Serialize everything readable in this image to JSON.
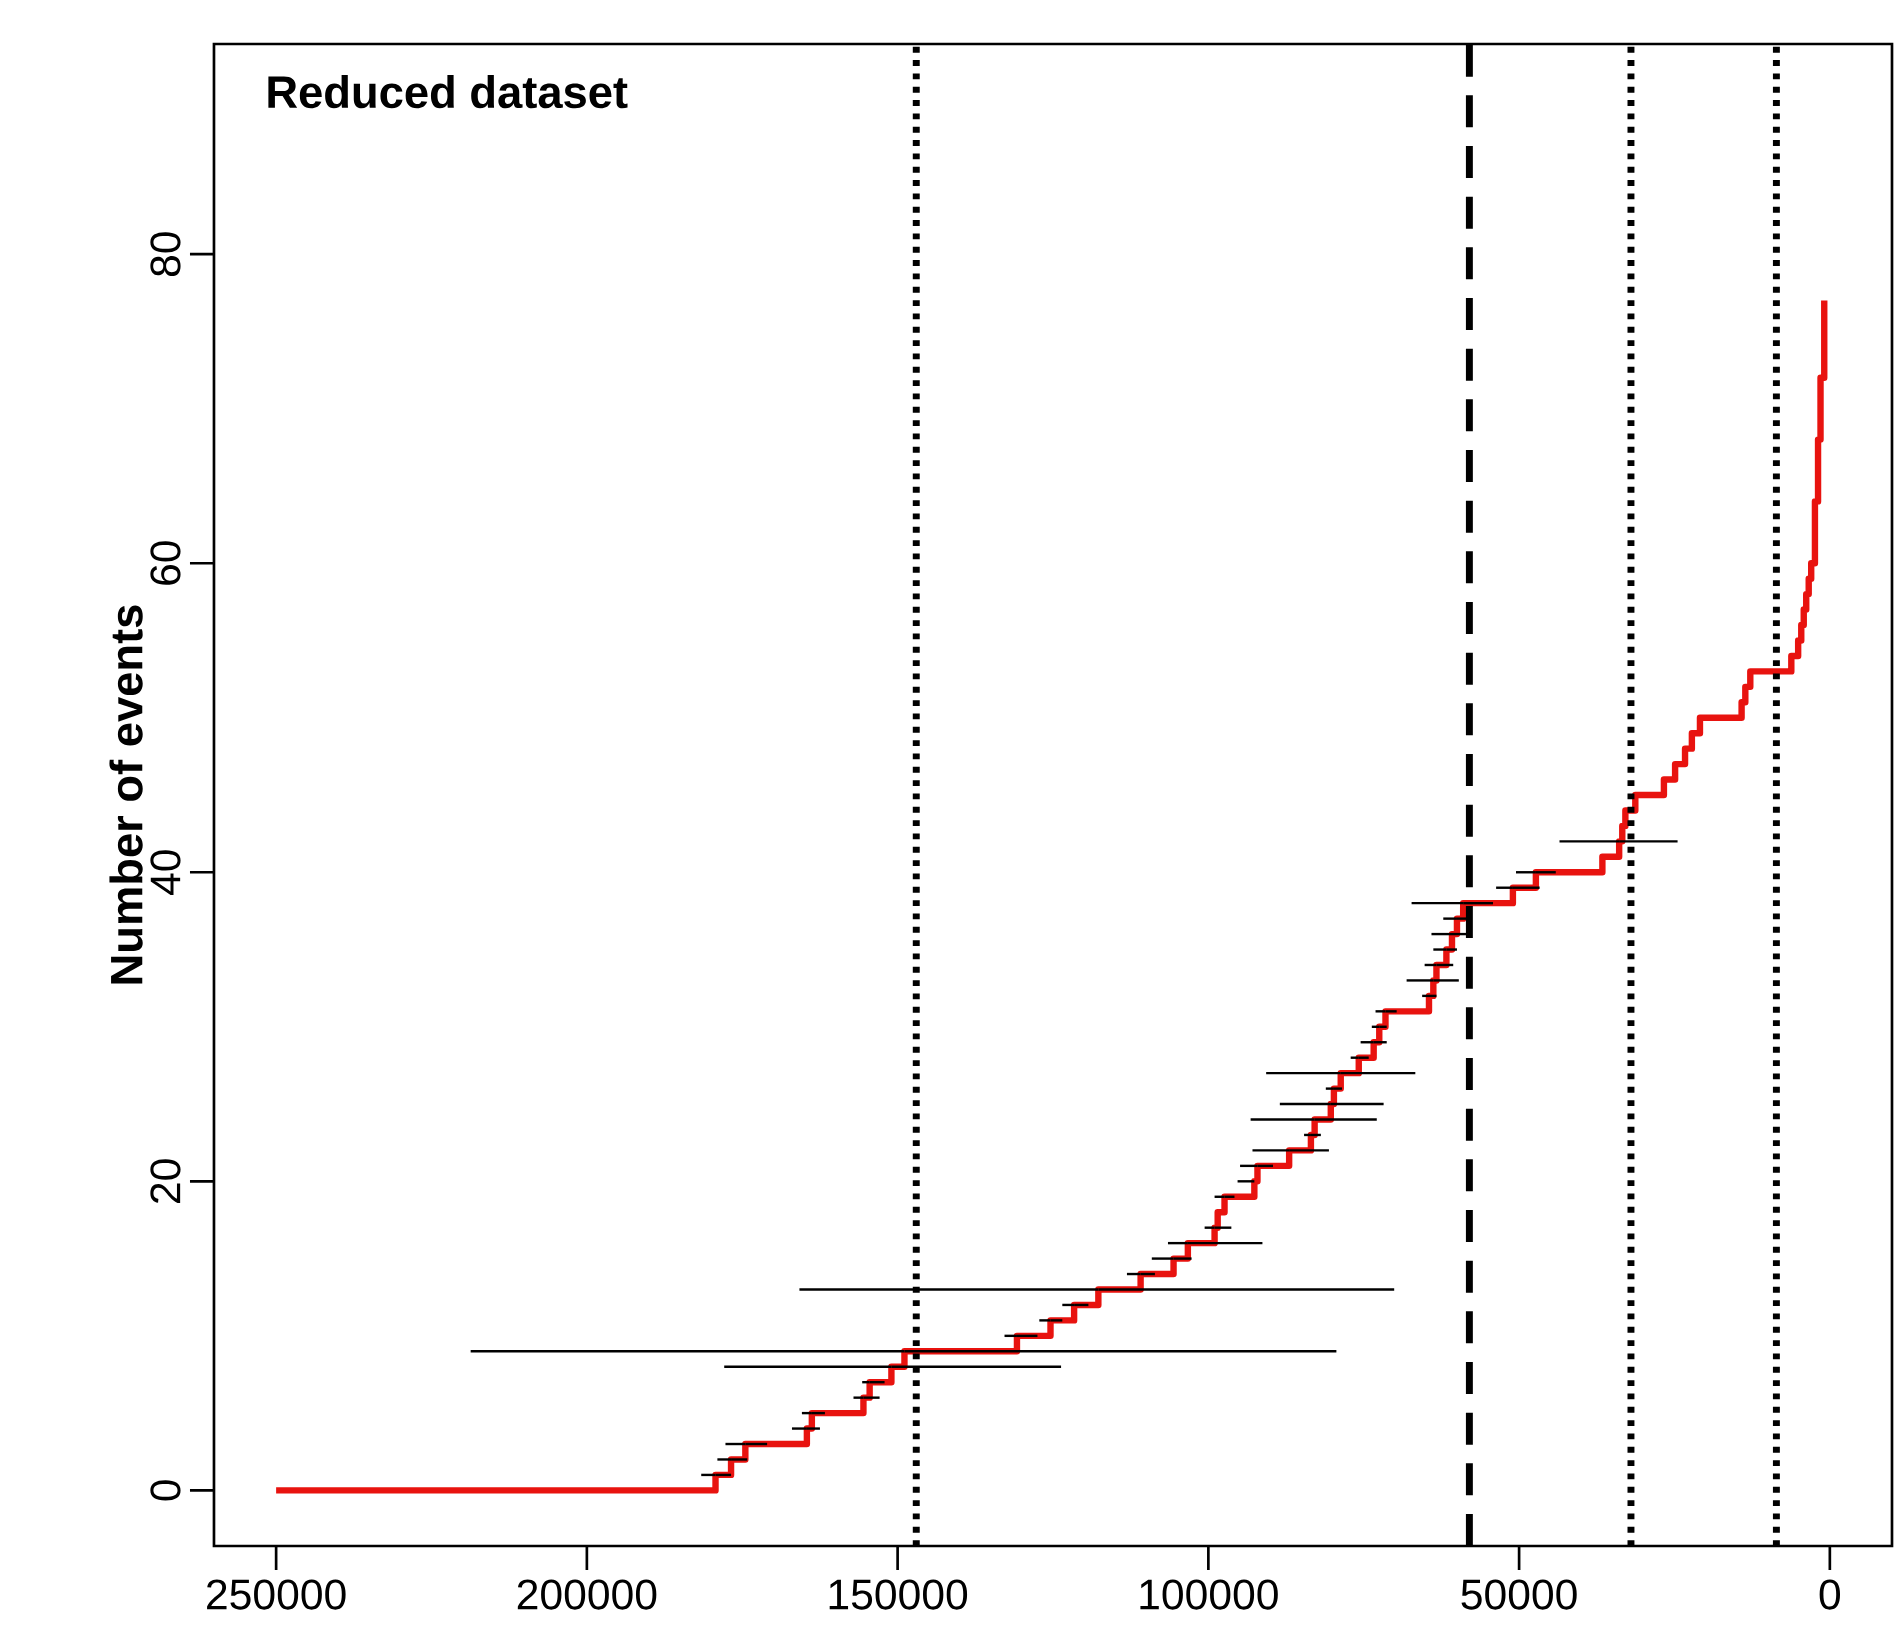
{
  "chart_data": {
    "type": "step",
    "title": "Reduced dataset",
    "ylabel": "Number of events",
    "x": [
      250000,
      179300,
      176800,
      174500,
      164600,
      163800,
      155500,
      154500,
      151000,
      148900,
      130800,
      125400,
      121600,
      117700,
      110900,
      105600,
      103300,
      99000,
      98500,
      97400,
      92600,
      92100,
      87000,
      83500,
      82900,
      80300,
      79800,
      78700,
      75800,
      73400,
      72500,
      71500,
      64500,
      63800,
      63300,
      61700,
      60800,
      60000,
      59000,
      51000,
      47300,
      36600,
      33900,
      33400,
      32900,
      31300,
      26700,
      24900,
      23300,
      22200,
      20900,
      14200,
      13600,
      12800,
      6200,
      5100,
      4600,
      4200,
      3800,
      3400,
      3000,
      2400,
      1900,
      1500,
      900
    ],
    "series": [
      {
        "color": "#e8130f",
        "values": [
          0,
          1,
          2,
          3,
          4,
          5,
          6,
          7,
          8,
          9,
          10,
          11,
          12,
          13,
          14,
          15,
          16,
          17,
          18,
          19,
          20,
          21,
          22,
          23,
          24,
          25,
          26,
          27,
          28,
          29,
          30,
          31,
          32,
          33,
          34,
          35,
          36,
          37,
          38,
          39,
          40,
          41,
          42,
          43,
          44,
          45,
          46,
          47,
          48,
          49,
          50,
          51,
          52,
          53,
          54,
          55,
          56,
          57,
          58,
          59,
          60,
          64,
          68,
          72,
          77
        ],
        "xerrors": [
          null,
          [
            176800,
            181600
          ],
          [
            174200,
            179000
          ],
          [
            171000,
            177700
          ],
          [
            162500,
            167000
          ],
          [
            161700,
            165400
          ],
          [
            152900,
            157100
          ],
          [
            152100,
            155700
          ],
          [
            123700,
            177900
          ],
          [
            79400,
            218700
          ],
          [
            127500,
            132800
          ],
          [
            123500,
            127200
          ],
          [
            119300,
            123500
          ],
          [
            70100,
            165800
          ],
          [
            108600,
            113100
          ],
          [
            102700,
            109100
          ],
          [
            91300,
            106500
          ],
          [
            96300,
            100600
          ],
          null,
          [
            95800,
            99000
          ],
          [
            92600,
            95300
          ],
          [
            89600,
            94900
          ],
          [
            80600,
            92900
          ],
          [
            81900,
            84600
          ],
          [
            72900,
            93200
          ],
          [
            71800,
            88500
          ],
          [
            78500,
            81100
          ],
          [
            66700,
            90700
          ],
          [
            74200,
            77100
          ],
          [
            71300,
            75500
          ],
          [
            71300,
            73700
          ],
          [
            69700,
            73100
          ],
          [
            63300,
            65600
          ],
          [
            59700,
            68100
          ],
          [
            60600,
            65200
          ],
          [
            60000,
            63800
          ],
          [
            58500,
            64100
          ],
          [
            58300,
            62200
          ],
          [
            54200,
            67300
          ],
          [
            46700,
            53700
          ],
          [
            44100,
            50500
          ],
          null,
          [
            24500,
            43500
          ],
          null,
          null,
          null,
          null,
          null,
          null,
          null,
          null,
          null,
          null,
          null,
          null,
          null,
          null,
          null,
          null,
          null,
          null,
          null,
          null,
          null,
          null
        ]
      }
    ],
    "xlim": [
      260000,
      -10000
    ],
    "xticks": [
      250000,
      200000,
      150000,
      100000,
      50000,
      0
    ],
    "ylim": [
      -3.6,
      93.6
    ],
    "yticks": [
      0,
      20,
      40,
      60,
      80
    ],
    "ref_lines": [
      {
        "axis": "x",
        "value": 147000,
        "color": "#000000",
        "line_style": "dotted"
      },
      {
        "axis": "x",
        "value": 58000,
        "color": "#000000",
        "line_style": "dashed"
      },
      {
        "axis": "x",
        "value": 32000,
        "color": "#000000",
        "line_style": "dotted"
      },
      {
        "axis": "x",
        "value": 8600,
        "color": "#000000",
        "line_style": "dotted"
      }
    ],
    "grid": false,
    "marker": "none",
    "line_style": "solid"
  }
}
